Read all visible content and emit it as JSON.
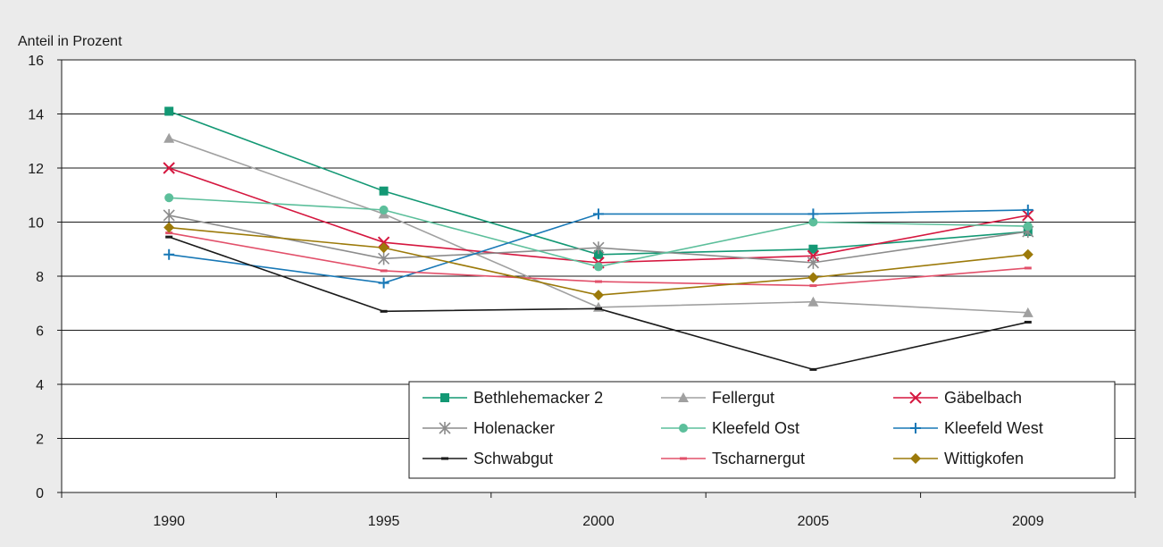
{
  "chart_data": {
    "type": "line",
    "title": "",
    "ylabel": "Anteil in Prozent",
    "xlabel": "",
    "categories": [
      "1990",
      "1995",
      "2000",
      "2005",
      "2009"
    ],
    "ylim": [
      0,
      16
    ],
    "yticks": [
      0,
      2,
      4,
      6,
      8,
      10,
      12,
      14,
      16
    ],
    "grid": "horizontal",
    "legend_placement": "bottom-right",
    "legend_columns": 3,
    "series": [
      {
        "name": "Bethlehemacker 2",
        "color": "#139874",
        "marker": "square",
        "values": [
          14.1,
          11.15,
          8.8,
          9.0,
          9.65
        ]
      },
      {
        "name": "Fellergut",
        "color": "#a0a0a0",
        "marker": "triangle",
        "values": [
          13.1,
          10.3,
          6.85,
          7.05,
          6.65
        ]
      },
      {
        "name": "Gäbelbach",
        "color": "#d5173f",
        "marker": "x",
        "values": [
          12.0,
          9.25,
          8.5,
          8.75,
          10.25
        ]
      },
      {
        "name": "Holenacker",
        "color": "#8c8c8c",
        "marker": "star",
        "values": [
          10.25,
          8.65,
          9.05,
          8.5,
          9.65
        ]
      },
      {
        "name": "Kleefeld Ost",
        "color": "#5cbf9b",
        "marker": "circle",
        "values": [
          10.9,
          10.45,
          8.35,
          10.0,
          9.85
        ]
      },
      {
        "name": "Kleefeld West",
        "color": "#1878b6",
        "marker": "plus",
        "values": [
          8.8,
          7.75,
          10.3,
          10.3,
          10.45
        ]
      },
      {
        "name": "Schwabgut",
        "color": "#1a1a1a",
        "marker": "dash",
        "values": [
          9.45,
          6.7,
          6.8,
          4.55,
          6.3
        ]
      },
      {
        "name": "Tscharnergut",
        "color": "#e2506a",
        "marker": "dash",
        "values": [
          9.6,
          8.2,
          7.8,
          7.65,
          8.3
        ]
      },
      {
        "name": "Wittigkofen",
        "color": "#9c7a0a",
        "marker": "diamond",
        "values": [
          9.8,
          9.05,
          7.3,
          7.95,
          8.8
        ]
      }
    ]
  }
}
